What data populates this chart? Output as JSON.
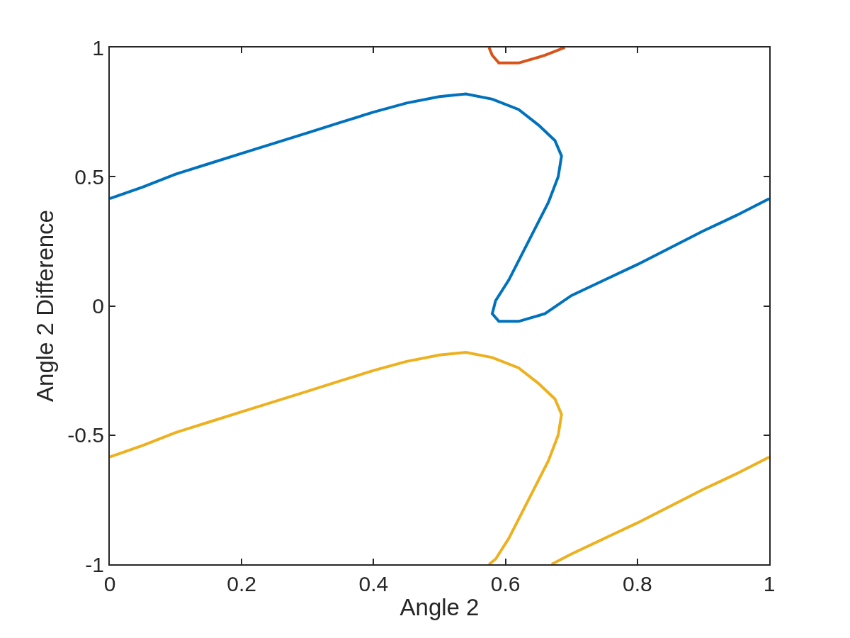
{
  "chart_data": {
    "type": "line",
    "xlabel": "Angle 2",
    "ylabel": "Angle 2 Difference",
    "xlim": [
      0,
      1
    ],
    "ylim": [
      -1,
      1
    ],
    "xticks": [
      0,
      0.2,
      0.4,
      0.6,
      0.8,
      1
    ],
    "yticks": [
      -1,
      -0.5,
      0,
      0.5,
      1
    ],
    "series": [
      {
        "color": "#0072bd",
        "x": [
          0,
          0.05,
          0.1,
          0.15,
          0.2,
          0.25,
          0.3,
          0.35,
          0.4,
          0.45,
          0.5,
          0.54,
          0.58,
          0.62,
          0.65,
          0.675,
          0.685,
          0.68,
          0.665,
          0.645,
          0.625,
          0.605,
          0.585,
          0.58,
          0.59,
          0.62,
          0.66,
          0.7,
          0.75,
          0.8,
          0.85,
          0.9,
          0.95,
          1
        ],
        "values": [
          0.415,
          0.46,
          0.51,
          0.55,
          0.59,
          0.63,
          0.67,
          0.71,
          0.75,
          0.785,
          0.81,
          0.82,
          0.8,
          0.76,
          0.7,
          0.64,
          0.58,
          0.5,
          0.4,
          0.3,
          0.2,
          0.1,
          0.02,
          -0.03,
          -0.06,
          -0.06,
          -0.03,
          0.04,
          0.1,
          0.16,
          0.225,
          0.29,
          0.35,
          0.415
        ]
      },
      {
        "color": "#d95319",
        "x": [
          0.575,
          0.58,
          0.59,
          0.62,
          0.66,
          0.69
        ],
        "values": [
          1,
          0.97,
          0.94,
          0.94,
          0.97,
          1
        ]
      },
      {
        "color": "#edb120",
        "x": [
          0,
          0.05,
          0.1,
          0.15,
          0.2,
          0.25,
          0.3,
          0.35,
          0.4,
          0.45,
          0.5,
          0.54,
          0.58,
          0.62,
          0.65,
          0.675,
          0.685,
          0.68,
          0.665,
          0.645,
          0.625,
          0.605,
          0.585,
          0.575,
          null,
          0.67,
          0.7,
          0.75,
          0.8,
          0.85,
          0.9,
          0.95,
          1
        ],
        "values": [
          -0.585,
          -0.54,
          -0.49,
          -0.45,
          -0.41,
          -0.37,
          -0.33,
          -0.29,
          -0.25,
          -0.215,
          -0.19,
          -0.18,
          -0.2,
          -0.24,
          -0.3,
          -0.36,
          -0.42,
          -0.5,
          -0.6,
          -0.7,
          -0.8,
          -0.9,
          -0.98,
          -1,
          null,
          -1,
          -0.96,
          -0.9,
          -0.84,
          -0.775,
          -0.71,
          -0.65,
          -0.585
        ]
      }
    ]
  }
}
